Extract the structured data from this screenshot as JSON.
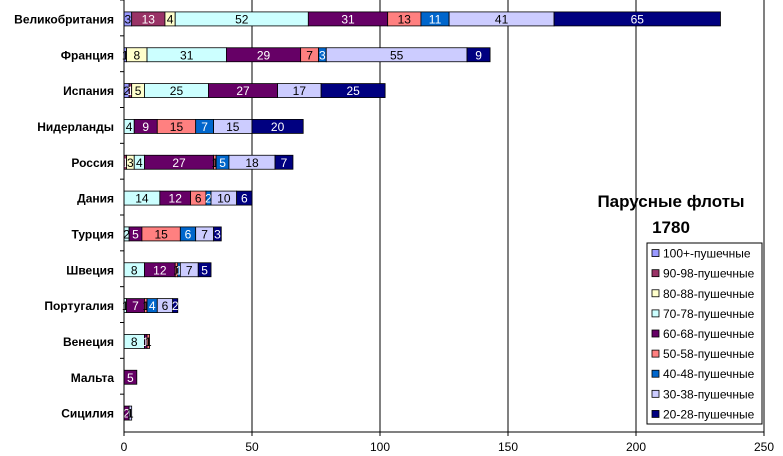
{
  "chart_data": {
    "type": "bar",
    "orientation": "horizontal",
    "stacked": true,
    "title": "Парусные флоты",
    "subtitle": "1780",
    "xlim": [
      0,
      250
    ],
    "xticks": [
      0,
      50,
      100,
      150,
      200,
      250
    ],
    "grid": "vertical major lines",
    "legend_position": "right",
    "categories": [
      "Великобритания",
      "Франция",
      "Испания",
      "Нидерланды",
      "Россия",
      "Дания",
      "Турция",
      "Швеция",
      "Португалия",
      "Венеция",
      "Мальта",
      "Сицилия"
    ],
    "series": [
      {
        "name": "100+-пушечные",
        "color": "#9999FF",
        "values": [
          3,
          1,
          2,
          0,
          0,
          0,
          0,
          0,
          0,
          0,
          0,
          0
        ]
      },
      {
        "name": "90-98-пушечные",
        "color": "#993366",
        "values": [
          13,
          0,
          1,
          0,
          1,
          0,
          0,
          0,
          0,
          0,
          0,
          0
        ]
      },
      {
        "name": "80-88-пушечные",
        "color": "#FFFFCC",
        "values": [
          4,
          8,
          5,
          0,
          3,
          0,
          0,
          0,
          0,
          0,
          0,
          0
        ]
      },
      {
        "name": "70-78-пушечные",
        "color": "#CCFFFF",
        "values": [
          52,
          31,
          25,
          4,
          4,
          14,
          2,
          8,
          1,
          8,
          0,
          0
        ]
      },
      {
        "name": "60-68-пушечные",
        "color": "#660066",
        "values": [
          31,
          29,
          27,
          9,
          27,
          12,
          5,
          12,
          7,
          1,
          5,
          2
        ]
      },
      {
        "name": "50-58-пушечные",
        "color": "#FF8080",
        "values": [
          13,
          7,
          0,
          15,
          1,
          6,
          15,
          1,
          1,
          1,
          0,
          0
        ]
      },
      {
        "name": "40-48-пушечные",
        "color": "#0066CC",
        "values": [
          11,
          3,
          0,
          7,
          5,
          2,
          6,
          1,
          4,
          0,
          0,
          0
        ]
      },
      {
        "name": "30-38-пушечные",
        "color": "#CCCCFF",
        "values": [
          41,
          55,
          17,
          15,
          18,
          10,
          7,
          7,
          6,
          0,
          0,
          1
        ]
      },
      {
        "name": "20-28-пушечные",
        "color": "#000080",
        "values": [
          65,
          9,
          25,
          20,
          7,
          6,
          3,
          5,
          2,
          0,
          0,
          0
        ]
      }
    ]
  }
}
